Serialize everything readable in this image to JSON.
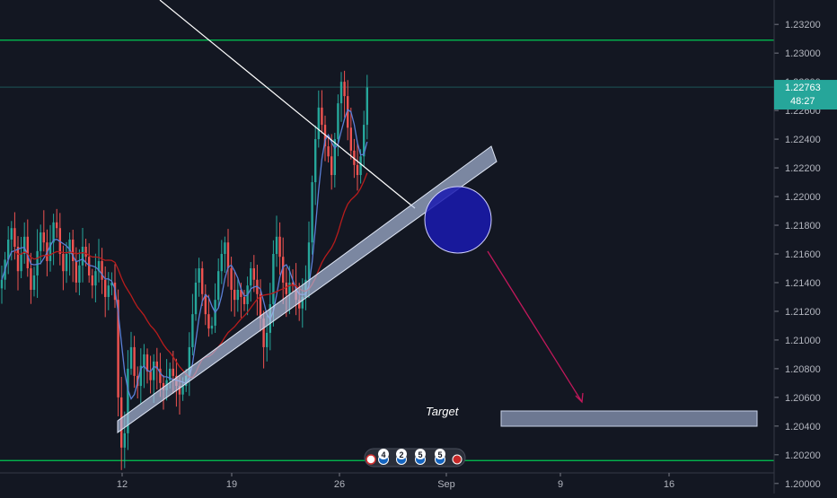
{
  "chart_data": {
    "type": "candlestick",
    "title": "",
    "xlabel": "",
    "ylabel": "",
    "ylim": [
      1.1993,
      1.2337
    ],
    "y_ticks": [
      "1.23200",
      "1.23000",
      "1.22800",
      "1.22600",
      "1.22400",
      "1.22200",
      "1.22000",
      "1.21800",
      "1.21600",
      "1.21400",
      "1.21200",
      "1.21000",
      "1.20800",
      "1.20600",
      "1.20400",
      "1.20200",
      "1.20000"
    ],
    "x_ticks": [
      "12",
      "19",
      "26",
      "Sep",
      "9",
      "16"
    ],
    "grid": false,
    "last_price": "1.22763",
    "countdown": "48:27",
    "price_series": [
      1.2142,
      1.2156,
      1.217,
      1.2178,
      1.2165,
      1.2148,
      1.216,
      1.2172,
      1.215,
      1.2135,
      1.2145,
      1.2162,
      1.2175,
      1.2168,
      1.2155,
      1.2168,
      1.2182,
      1.2178,
      1.216,
      1.2148,
      1.216,
      1.217,
      1.2155,
      1.214,
      1.2152,
      1.2165,
      1.2158,
      1.2145,
      1.2138,
      1.2148,
      1.2155,
      1.2142,
      1.213,
      1.2138,
      1.214,
      1.2128,
      1.206,
      1.2025,
      1.2035,
      1.208,
      1.2095,
      1.2075,
      1.2068,
      1.2082,
      1.209,
      1.2078,
      1.2072,
      1.2085,
      1.208,
      1.207,
      1.2065,
      1.2072,
      1.208,
      1.2075,
      1.2068,
      1.2062,
      1.2068,
      1.2075,
      1.2095,
      1.2118,
      1.214,
      1.215,
      1.2132,
      1.2118,
      1.2108,
      1.211,
      1.2128,
      1.2148,
      1.216,
      1.2168,
      1.215,
      1.2135,
      1.2128,
      1.2135,
      1.213,
      1.2125,
      1.2138,
      1.215,
      1.2142,
      1.2132,
      1.2115,
      1.2095,
      1.2105,
      1.2125,
      1.216,
      1.2172,
      1.2158,
      1.214,
      1.2132,
      1.214,
      1.2138,
      1.2128,
      1.2122,
      1.213,
      1.2142,
      1.2168,
      1.221,
      1.224,
      1.2262,
      1.225,
      1.2235,
      1.2228,
      1.2215,
      1.224,
      1.2265,
      1.228,
      1.227,
      1.2248,
      1.2232,
      1.2222,
      1.2215,
      1.2228,
      1.225,
      1.2276
    ],
    "annotations": [
      {
        "kind": "text",
        "label": "Target"
      },
      {
        "kind": "horizontal-line",
        "value": 1.2309
      },
      {
        "kind": "horizontal-line",
        "value": 1.2016
      }
    ],
    "event_flags": [
      "4",
      "2",
      "5",
      "5"
    ]
  },
  "colors": {
    "background": "#131722",
    "up": "#26a69a",
    "down": "#ef5350",
    "fast_ma": "#5b7fd6",
    "slow_ma": "#b71c1c",
    "trendline": "#ffffff",
    "channel": "#b4c3e6",
    "level": "#00c853",
    "circle": "#1a1ab0",
    "arrow": "#c2185b",
    "target_box": "#8c9ab8",
    "price_label": "#26a69a"
  }
}
